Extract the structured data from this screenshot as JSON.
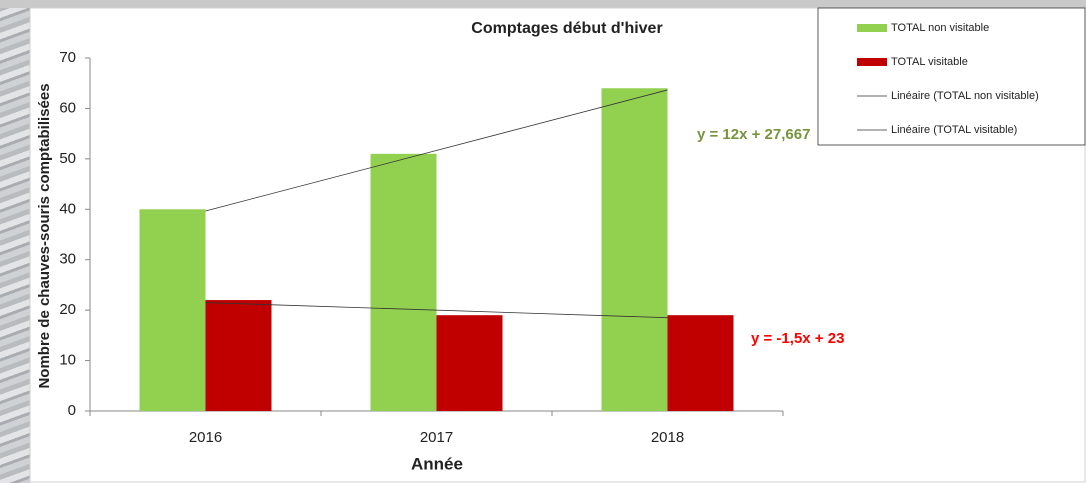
{
  "chart_data": {
    "type": "bar",
    "title": "Comptages début d'hiver",
    "x_label": "Année",
    "y_label": "Nombre de chauves-souris comptabilisées",
    "categories": [
      "2016",
      "2017",
      "2018"
    ],
    "series": [
      {
        "name": "TOTAL non visitable",
        "color": "#92d050",
        "values": [
          40,
          51,
          64
        ],
        "trendline": {
          "name": "Linéaire (TOTAL non visitable)",
          "label": "y = 12x + 27,667",
          "slope": 12,
          "intercept": 27.667,
          "label_color": "#77933c"
        }
      },
      {
        "name": "TOTAL visitable",
        "color": "#c00000",
        "values": [
          22,
          19,
          19
        ],
        "trendline": {
          "name": "Linéaire (TOTAL visitable)",
          "label": "y = -1,5x + 23",
          "slope": -1.5,
          "intercept": 23,
          "label_color": "#ff0000"
        }
      }
    ],
    "ylim": [
      0,
      70
    ],
    "yticks": [
      0,
      10,
      20,
      30,
      40,
      50,
      60,
      70
    ],
    "legend": "top-right"
  }
}
